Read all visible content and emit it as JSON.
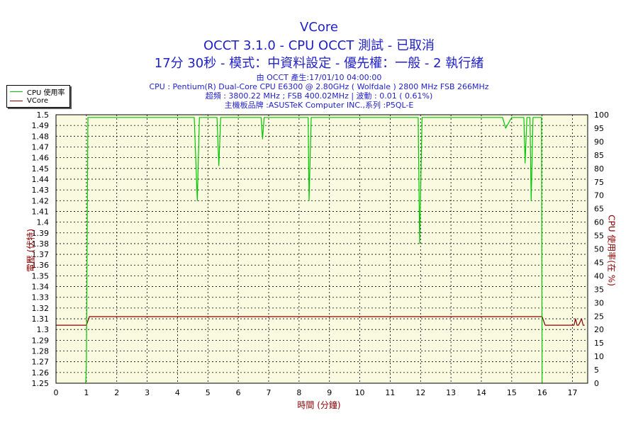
{
  "header": {
    "title": "VCore",
    "subtitle1": "OCCT 3.1.0 - CPU OCCT 測試 - 已取消",
    "subtitle2": "17分 30秒 - 模式：中資料設定 - 優先權：一般 - 2 執行緒",
    "info_line1": "由 OCCT 產生:17/01/10 04:00:00",
    "info_line2": "CPU : Pentium(R) Dual-Core CPU E6300 @ 2.80GHz ( Wolfdale ) 2800 MHz FSB 266MHz",
    "info_line3": "超頻 : 3800.22 MHz ; FSB 400.02MHz | 波動 : 0.01 ( 0.61%)",
    "info_line4": "主機板品牌 :ASUSTeK Computer INC.,系列 :P5QL-E"
  },
  "legend": {
    "cpu_label": "CPU 使用率",
    "vcore_label": "VCore"
  },
  "colors": {
    "cpu": "#00c800",
    "vcore": "#8b0000",
    "plot_bg": "#fafae1",
    "grid": "#000000",
    "header": "#1f1fc8"
  },
  "chart_data": {
    "type": "line",
    "title": "VCore",
    "xlabel": "時間 (分鐘)",
    "ylabel": "電壓 (伏特)",
    "y2label": "CPU 使用率(在 %)",
    "xlim": [
      0,
      17.5
    ],
    "ylim": [
      1.25,
      1.5
    ],
    "y2lim": [
      0,
      100
    ],
    "x_ticks": [
      "0",
      "1",
      "2",
      "3",
      "4",
      "5",
      "6",
      "7",
      "8",
      "9",
      "10",
      "11",
      "12",
      "13",
      "14",
      "15",
      "16",
      "17"
    ],
    "y_ticks": [
      "1.25",
      "1.26",
      "1.27",
      "1.28",
      "1.29",
      "1.3",
      "1.31",
      "1.32",
      "1.33",
      "1.34",
      "1.35",
      "1.36",
      "1.37",
      "1.38",
      "1.39",
      "1.4",
      "1.41",
      "1.42",
      "1.43",
      "1.44",
      "1.45",
      "1.46",
      "1.47",
      "1.48",
      "1.49",
      "1.5"
    ],
    "y2_ticks": [
      "0",
      "5",
      "10",
      "15",
      "20",
      "25",
      "30",
      "35",
      "40",
      "45",
      "50",
      "55",
      "60",
      "65",
      "70",
      "75",
      "80",
      "85",
      "90",
      "95",
      "100"
    ],
    "grid": true,
    "legend_position": "top-left",
    "series": [
      {
        "name": "CPU 使用率",
        "axis": "right",
        "x": [
          0.98,
          1.0,
          1.05,
          1.1,
          1.5,
          2.0,
          3.0,
          4.0,
          4.55,
          4.65,
          4.72,
          4.8,
          5.3,
          5.36,
          5.42,
          6.0,
          6.75,
          6.8,
          6.85,
          7.5,
          8.3,
          8.33,
          8.4,
          8.5,
          9.0,
          10.0,
          11.0,
          11.92,
          11.97,
          12.05,
          13.0,
          14.0,
          14.7,
          14.8,
          15.0,
          15.4,
          15.44,
          15.5,
          15.6,
          15.64,
          15.7,
          15.98,
          16.0
        ],
        "y": [
          0,
          8,
          99,
          99,
          99,
          99,
          99,
          99,
          99,
          68,
          99,
          99,
          99,
          81,
          99,
          99,
          99,
          91,
          99,
          99,
          99,
          68,
          99,
          99,
          99,
          99,
          99,
          99,
          52,
          99,
          99,
          99,
          99,
          95,
          99,
          99,
          82,
          99,
          99,
          68,
          99,
          99,
          0
        ]
      },
      {
        "name": "VCore",
        "axis": "left",
        "x": [
          0,
          1.0,
          1.1,
          16.0,
          16.1,
          17.05,
          17.1,
          17.15,
          17.2,
          17.3,
          17.35,
          17.4
        ],
        "y": [
          1.304,
          1.304,
          1.312,
          1.312,
          1.304,
          1.304,
          1.31,
          1.304,
          1.304,
          1.31,
          1.304,
          1.304
        ]
      }
    ]
  }
}
